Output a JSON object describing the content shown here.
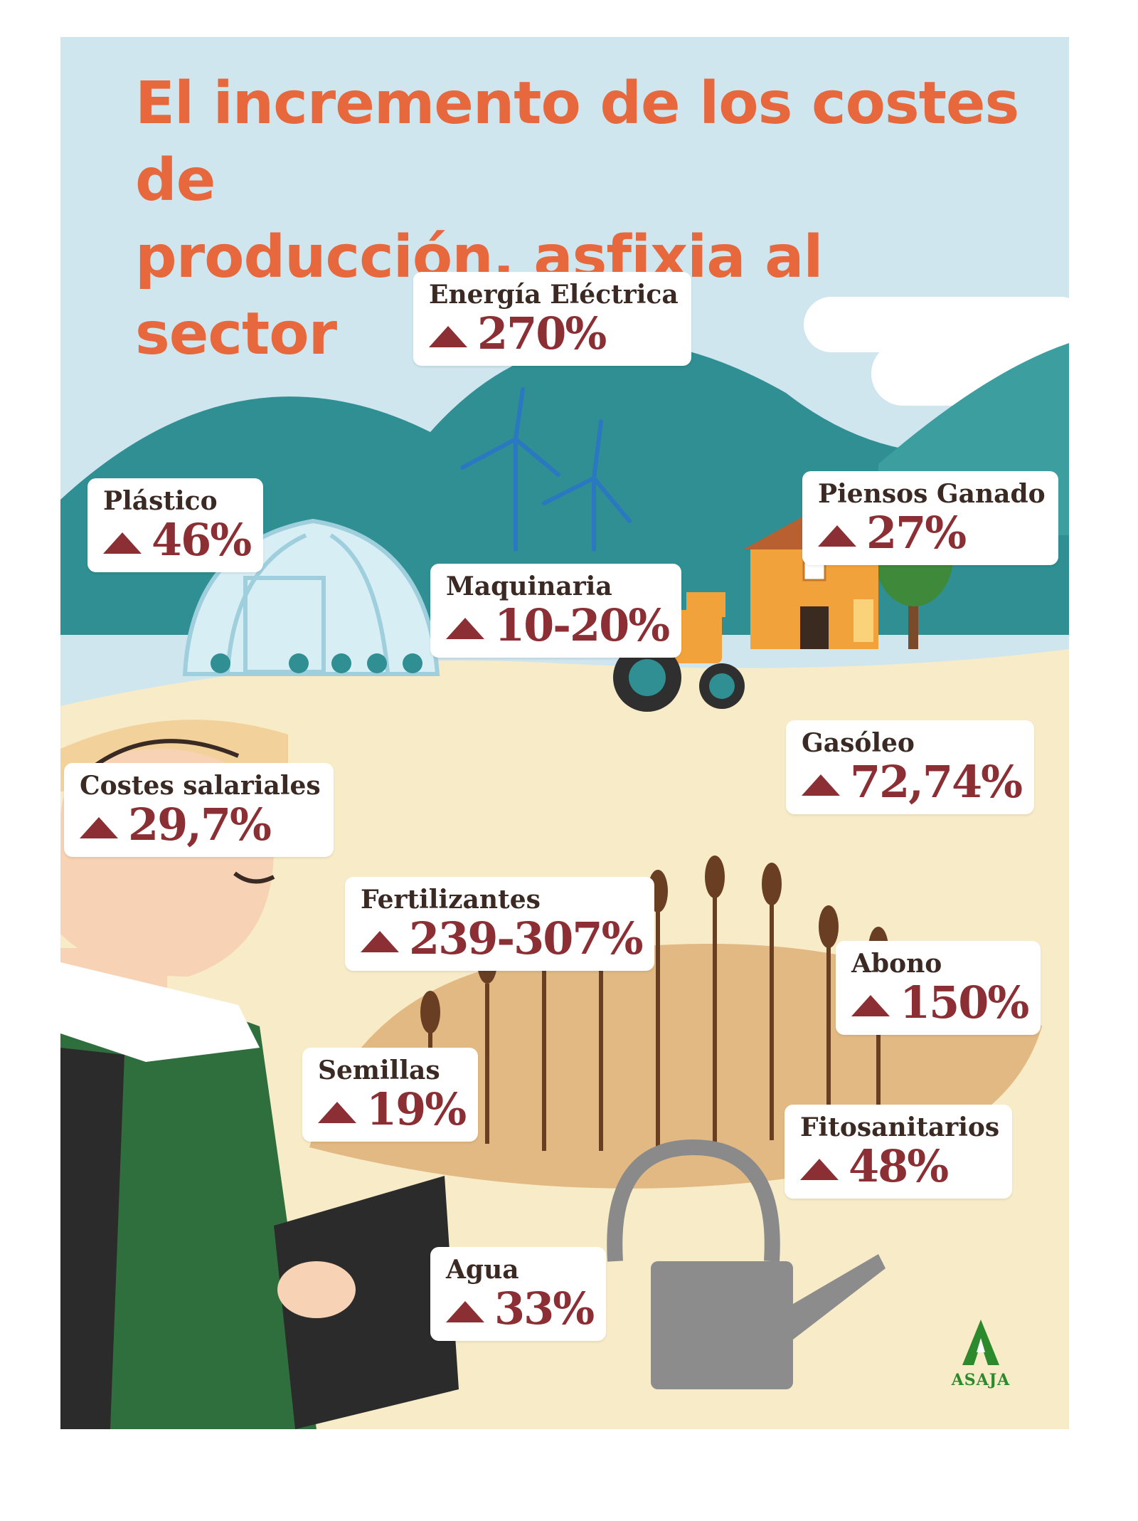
{
  "title_line1": "El incremento de los costes de",
  "title_line2": "producción, asfixia al sector",
  "logo_text": "ASAJA",
  "colors": {
    "title": "#e8683e",
    "value": "#8b2f34",
    "label": "#3b2a24",
    "sky": "#cfe6ef",
    "hills": "#2f8f92",
    "field": "#f7ebc8",
    "logo": "#2c8a2c"
  },
  "items": [
    {
      "name": "Energía Eléctrica",
      "value": "270%"
    },
    {
      "name": "Plástico",
      "value": "46%"
    },
    {
      "name": "Piensos Ganado",
      "value": "27%"
    },
    {
      "name": "Maquinaria",
      "value": "10-20%"
    },
    {
      "name": "Gasóleo",
      "value": "72,74%"
    },
    {
      "name": "Costes salariales",
      "value": "29,7%"
    },
    {
      "name": "Fertilizantes",
      "value": "239-307%"
    },
    {
      "name": "Abono",
      "value": "150%"
    },
    {
      "name": "Semillas",
      "value": "19%"
    },
    {
      "name": "Fitosanitarios",
      "value": "48%"
    },
    {
      "name": "Agua",
      "value": "33%"
    }
  ]
}
